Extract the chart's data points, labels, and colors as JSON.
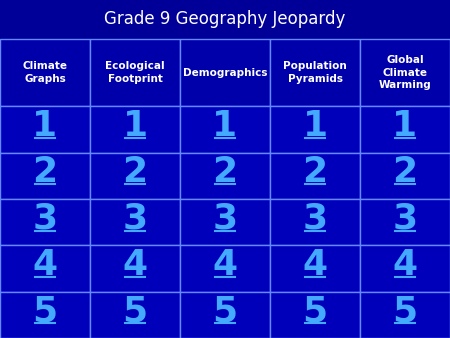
{
  "title": "Grade 9 Geography Jeopardy",
  "title_fontsize": 12,
  "title_color": "#ffffff",
  "columns": [
    "Climate\nGraphs",
    "Ecological\nFootprint",
    "Demographics",
    "Population\nPyramids",
    "Global\nClimate\nWarming"
  ],
  "rows": [
    "1",
    "2",
    "3",
    "4",
    "5"
  ],
  "num_cols": 5,
  "num_rows": 5,
  "header_bg": "#0000aa",
  "cell_bg": "#0000bb",
  "header_text_color": "#ffffff",
  "cell_text_color": "#44aaff",
  "grid_color": "#6688ff",
  "figure_bg": "#000099",
  "header_fontsize": 7.5,
  "cell_fontsize": 26
}
